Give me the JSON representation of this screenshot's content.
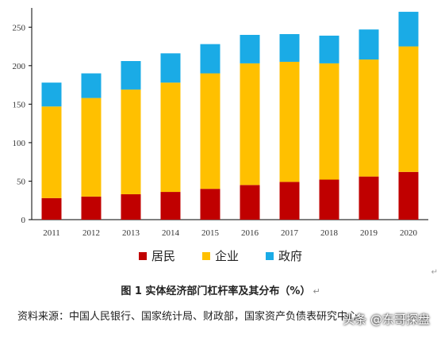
{
  "chart_data": {
    "type": "bar",
    "stacked": true,
    "categories": [
      "2011",
      "2012",
      "2013",
      "2014",
      "2015",
      "2016",
      "2017",
      "2018",
      "2019",
      "2020"
    ],
    "series": [
      {
        "name": "居民",
        "color": "#C00000",
        "values": [
          28,
          30,
          33,
          36,
          40,
          45,
          49,
          52,
          56,
          62
        ]
      },
      {
        "name": "企业",
        "color": "#FFC000",
        "values": [
          119,
          128,
          136,
          142,
          150,
          158,
          156,
          151,
          152,
          163
        ]
      },
      {
        "name": "政府",
        "color": "#1AABE6",
        "values": [
          31,
          32,
          37,
          38,
          38,
          37,
          36,
          36,
          39,
          45
        ]
      }
    ],
    "yticks": [
      0,
      50,
      100,
      150,
      200,
      250
    ],
    "ylim": [
      0,
      275
    ],
    "legend_position": "bottom",
    "grid": false
  },
  "caption": {
    "title": "图 1  实体经济部门杠杆率及其分布（%）",
    "mark": "↵"
  },
  "source_text": "资料来源：中国人民银行、国家统计局、财政部，国家资产负债表研究中心",
  "watermark_text": "头条 @东哥探盘",
  "edge_mark": "↵"
}
